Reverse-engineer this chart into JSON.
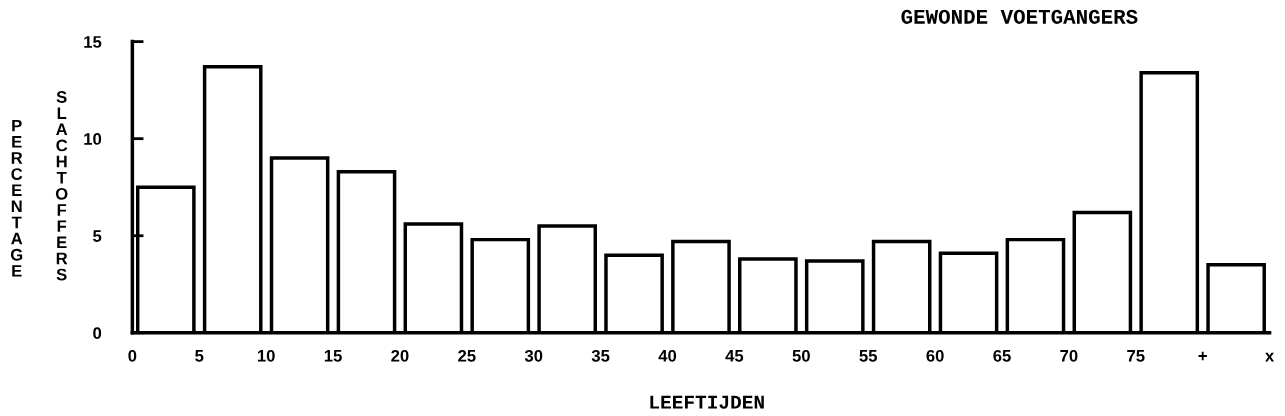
{
  "chart_data": {
    "type": "histogram",
    "title": "GEWONDE VOETGANGERS",
    "xlabel": "LEEFTIJDEN",
    "ylabel": "PERCENTAGE SLACHTOFFERS",
    "bins": [
      0,
      5,
      10,
      15,
      20,
      25,
      30,
      35,
      40,
      45,
      50,
      55,
      60,
      65,
      70,
      75,
      80,
      85
    ],
    "values": [
      7.5,
      13.7,
      9.0,
      8.3,
      5.6,
      4.8,
      5.5,
      4.0,
      4.7,
      3.8,
      3.7,
      4.7,
      4.1,
      4.8,
      6.2,
      13.4,
      3.5
    ],
    "color": "#ffffff",
    "xlim": [
      0,
      85
    ],
    "xticks": [
      0,
      5,
      10,
      15,
      20,
      25,
      30,
      35,
      40,
      45,
      50,
      55,
      60,
      65,
      70,
      75,
      {
        "value": 80,
        "label": "+"
      },
      {
        "value": 85,
        "label": "x"
      }
    ],
    "ylim": [
      0,
      15
    ],
    "yticks": [
      0,
      5,
      10,
      15
    ],
    "grid": false,
    "legend": false
  }
}
